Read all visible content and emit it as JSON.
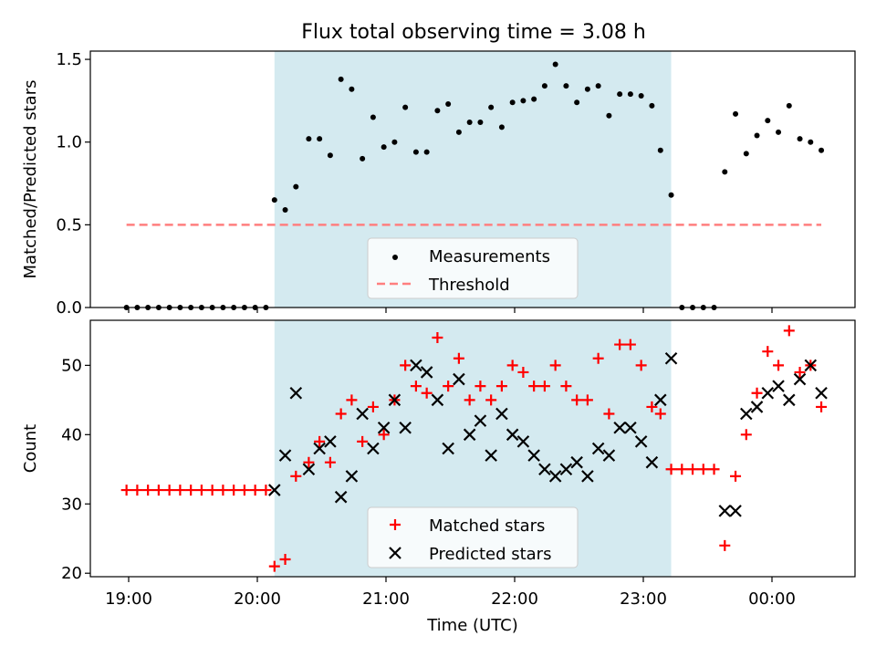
{
  "title": "Flux total observing time = 3.08 h",
  "chart_data": [
    {
      "type": "scatter",
      "panel": "top",
      "ylabel": "Matched/Predicted stars",
      "xlabel": "",
      "ylim": [
        0,
        1.55
      ],
      "yticks": [
        0.0,
        0.5,
        1.0,
        1.5
      ],
      "ytick_labels": [
        "0.0",
        "0.5",
        "1.0",
        "1.5"
      ],
      "shaded_region": {
        "from": "20:08",
        "to": "23:13",
        "color": "#d4eaf0"
      },
      "legend_position": "lower-center",
      "series": [
        {
          "name": "Measurements",
          "marker": "dot",
          "color": "#000000",
          "points": [
            [
              "18:59",
              0.0
            ],
            [
              "19:04",
              0.0
            ],
            [
              "19:09",
              0.0
            ],
            [
              "19:14",
              0.0
            ],
            [
              "19:19",
              0.0
            ],
            [
              "19:24",
              0.0
            ],
            [
              "19:29",
              0.0
            ],
            [
              "19:34",
              0.0
            ],
            [
              "19:39",
              0.0
            ],
            [
              "19:44",
              0.0
            ],
            [
              "19:49",
              0.0
            ],
            [
              "19:54",
              0.0
            ],
            [
              "19:59",
              0.0
            ],
            [
              "20:04",
              0.0
            ],
            [
              "20:08",
              0.65
            ],
            [
              "20:13",
              0.59
            ],
            [
              "20:18",
              0.73
            ],
            [
              "20:24",
              1.02
            ],
            [
              "20:29",
              1.02
            ],
            [
              "20:34",
              0.92
            ],
            [
              "20:39",
              1.38
            ],
            [
              "20:44",
              1.32
            ],
            [
              "20:49",
              0.9
            ],
            [
              "20:54",
              1.15
            ],
            [
              "20:59",
              0.97
            ],
            [
              "21:04",
              1.0
            ],
            [
              "21:09",
              1.21
            ],
            [
              "21:14",
              0.94
            ],
            [
              "21:19",
              0.94
            ],
            [
              "21:24",
              1.19
            ],
            [
              "21:29",
              1.23
            ],
            [
              "21:34",
              1.06
            ],
            [
              "21:39",
              1.12
            ],
            [
              "21:44",
              1.12
            ],
            [
              "21:49",
              1.21
            ],
            [
              "21:54",
              1.09
            ],
            [
              "21:59",
              1.24
            ],
            [
              "22:04",
              1.25
            ],
            [
              "22:09",
              1.26
            ],
            [
              "22:14",
              1.34
            ],
            [
              "22:19",
              1.47
            ],
            [
              "22:24",
              1.34
            ],
            [
              "22:29",
              1.24
            ],
            [
              "22:34",
              1.32
            ],
            [
              "22:39",
              1.34
            ],
            [
              "22:44",
              1.16
            ],
            [
              "22:49",
              1.29
            ],
            [
              "22:54",
              1.29
            ],
            [
              "22:59",
              1.28
            ],
            [
              "23:04",
              1.22
            ],
            [
              "23:08",
              0.95
            ],
            [
              "23:13",
              0.68
            ],
            [
              "23:18",
              0.0
            ],
            [
              "23:23",
              0.0
            ],
            [
              "23:28",
              0.0
            ],
            [
              "23:33",
              0.0
            ],
            [
              "23:38",
              0.82
            ],
            [
              "23:43",
              1.17
            ],
            [
              "23:48",
              0.93
            ],
            [
              "23:53",
              1.04
            ],
            [
              "23:58",
              1.13
            ],
            [
              "00:03",
              1.06
            ],
            [
              "00:08",
              1.22
            ],
            [
              "00:13",
              1.02
            ],
            [
              "00:18",
              1.0
            ],
            [
              "00:23",
              0.95
            ]
          ]
        },
        {
          "name": "Threshold",
          "style": "dashed",
          "color": "#ff7f7f",
          "points": [
            [
              "18:59",
              0.5
            ],
            [
              "00:23",
              0.5
            ]
          ]
        }
      ]
    },
    {
      "type": "scatter",
      "panel": "bottom",
      "ylabel": "Count",
      "xlabel": "Time (UTC)",
      "ylim": [
        19.5,
        56.5
      ],
      "yticks": [
        20,
        30,
        40,
        50
      ],
      "ytick_labels": [
        "20",
        "30",
        "40",
        "50"
      ],
      "xticks": [
        "19:00",
        "20:00",
        "21:00",
        "22:00",
        "23:00",
        "00:00"
      ],
      "shaded_region": {
        "from": "20:08",
        "to": "23:13",
        "color": "#d4eaf0"
      },
      "legend_position": "lower-center",
      "series": [
        {
          "name": "Matched stars",
          "marker": "plus",
          "color": "#ff0000",
          "points": [
            [
              "18:59",
              32
            ],
            [
              "19:04",
              32
            ],
            [
              "19:09",
              32
            ],
            [
              "19:14",
              32
            ],
            [
              "19:19",
              32
            ],
            [
              "19:24",
              32
            ],
            [
              "19:29",
              32
            ],
            [
              "19:34",
              32
            ],
            [
              "19:39",
              32
            ],
            [
              "19:44",
              32
            ],
            [
              "19:49",
              32
            ],
            [
              "19:54",
              32
            ],
            [
              "19:59",
              32
            ],
            [
              "20:04",
              32
            ],
            [
              "20:08",
              21
            ],
            [
              "20:13",
              22
            ],
            [
              "20:18",
              34
            ],
            [
              "20:24",
              36
            ],
            [
              "20:29",
              39
            ],
            [
              "20:34",
              36
            ],
            [
              "20:39",
              43
            ],
            [
              "20:44",
              45
            ],
            [
              "20:49",
              39
            ],
            [
              "20:54",
              44
            ],
            [
              "20:59",
              40
            ],
            [
              "21:04",
              45
            ],
            [
              "21:09",
              50
            ],
            [
              "21:14",
              47
            ],
            [
              "21:19",
              46
            ],
            [
              "21:24",
              54
            ],
            [
              "21:29",
              47
            ],
            [
              "21:34",
              51
            ],
            [
              "21:39",
              45
            ],
            [
              "21:44",
              47
            ],
            [
              "21:49",
              45
            ],
            [
              "21:54",
              47
            ],
            [
              "21:59",
              50
            ],
            [
              "22:04",
              49
            ],
            [
              "22:09",
              47
            ],
            [
              "22:14",
              47
            ],
            [
              "22:19",
              50
            ],
            [
              "22:24",
              47
            ],
            [
              "22:29",
              45
            ],
            [
              "22:34",
              45
            ],
            [
              "22:39",
              51
            ],
            [
              "22:44",
              43
            ],
            [
              "22:49",
              53
            ],
            [
              "22:54",
              53
            ],
            [
              "22:59",
              50
            ],
            [
              "23:04",
              44
            ],
            [
              "23:08",
              43
            ],
            [
              "23:13",
              35
            ],
            [
              "23:18",
              35
            ],
            [
              "23:23",
              35
            ],
            [
              "23:28",
              35
            ],
            [
              "23:33",
              35
            ],
            [
              "23:38",
              24
            ],
            [
              "23:43",
              34
            ],
            [
              "23:48",
              40
            ],
            [
              "23:53",
              46
            ],
            [
              "23:58",
              52
            ],
            [
              "00:03",
              50
            ],
            [
              "00:08",
              55
            ],
            [
              "00:13",
              49
            ],
            [
              "00:18",
              50
            ],
            [
              "00:23",
              44
            ]
          ]
        },
        {
          "name": "Predicted stars",
          "marker": "x",
          "color": "#000000",
          "points": [
            [
              "20:08",
              32
            ],
            [
              "20:13",
              37
            ],
            [
              "20:18",
              46
            ],
            [
              "20:24",
              35
            ],
            [
              "20:29",
              38
            ],
            [
              "20:34",
              39
            ],
            [
              "20:39",
              31
            ],
            [
              "20:44",
              34
            ],
            [
              "20:49",
              43
            ],
            [
              "20:54",
              38
            ],
            [
              "20:59",
              41
            ],
            [
              "21:04",
              45
            ],
            [
              "21:09",
              41
            ],
            [
              "21:14",
              50
            ],
            [
              "21:19",
              49
            ],
            [
              "21:24",
              45
            ],
            [
              "21:29",
              38
            ],
            [
              "21:34",
              48
            ],
            [
              "21:39",
              40
            ],
            [
              "21:44",
              42
            ],
            [
              "21:49",
              37
            ],
            [
              "21:54",
              43
            ],
            [
              "21:59",
              40
            ],
            [
              "22:04",
              39
            ],
            [
              "22:09",
              37
            ],
            [
              "22:14",
              35
            ],
            [
              "22:19",
              34
            ],
            [
              "22:24",
              35
            ],
            [
              "22:29",
              36
            ],
            [
              "22:34",
              34
            ],
            [
              "22:39",
              38
            ],
            [
              "22:44",
              37
            ],
            [
              "22:49",
              41
            ],
            [
              "22:54",
              41
            ],
            [
              "22:59",
              39
            ],
            [
              "23:04",
              36
            ],
            [
              "23:08",
              45
            ],
            [
              "23:13",
              51
            ],
            [
              "23:38",
              29
            ],
            [
              "23:43",
              29
            ],
            [
              "23:48",
              43
            ],
            [
              "23:53",
              44
            ],
            [
              "23:58",
              46
            ],
            [
              "00:03",
              47
            ],
            [
              "00:08",
              45
            ],
            [
              "00:13",
              48
            ],
            [
              "00:18",
              50
            ],
            [
              "00:23",
              46
            ]
          ]
        }
      ]
    }
  ]
}
